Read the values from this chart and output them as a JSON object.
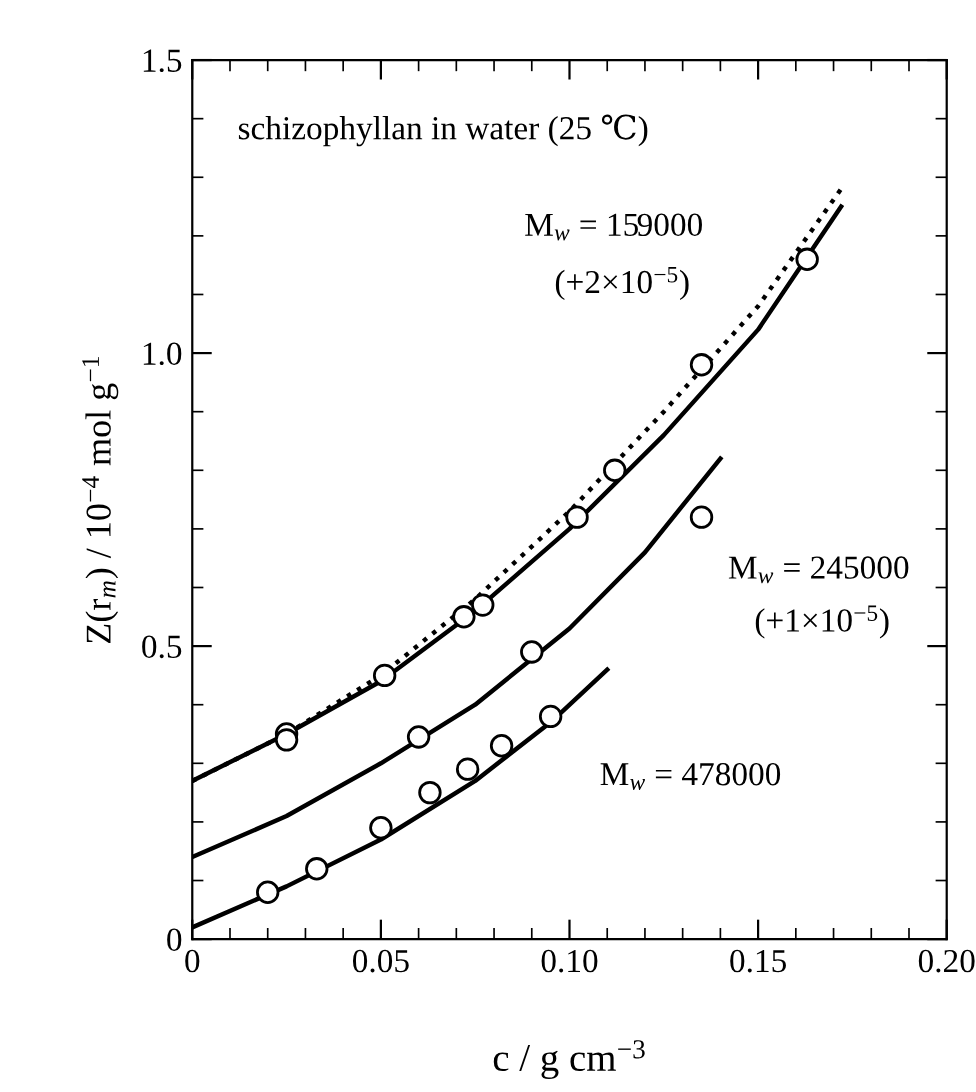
{
  "chart_data": {
    "type": "scatter",
    "xlabel": "c / g cm$^{−3}$",
    "ylabel": "Z(r$_{m}$) / 10$^{−4}$ mol g$^{−1}$",
    "xlim": [
      0,
      0.2
    ],
    "ylim": [
      0,
      1.5
    ],
    "xticks": [
      0,
      0.05,
      {
        "value": 0.1,
        "label": "0.10"
      },
      0.15,
      {
        "value": 0.2,
        "label": "0.20"
      }
    ],
    "yticks": [
      0,
      0.5,
      {
        "value": 1.0,
        "label": "1.0"
      },
      1.5
    ],
    "grid": false,
    "legend": false,
    "series": [
      {
        "type": "line",
        "marker": "none",
        "color": "#000000",
        "line_style": "dotted",
        "x": [
          0,
          0.025,
          0.05,
          0.075,
          0.1,
          0.125,
          0.15,
          0.172
        ],
        "values": [
          0.27,
          0.35,
          0.45,
          0.58,
          0.73,
          0.9,
          1.08,
          1.28
        ]
      },
      {
        "type": "line",
        "marker": "none",
        "color": "#000000",
        "line_style": "solid",
        "x": [
          0,
          0.025,
          0.05,
          0.075,
          0.1,
          0.125,
          0.15,
          0.172
        ],
        "values": [
          0.27,
          0.35,
          0.44,
          0.56,
          0.7,
          0.86,
          1.04,
          1.25
        ]
      },
      {
        "type": "line",
        "marker": "none",
        "color": "#000000",
        "line_style": "solid",
        "x": [
          0,
          0.025,
          0.05,
          0.075,
          0.1,
          0.12,
          0.14
        ],
        "values": [
          0.14,
          0.21,
          0.3,
          0.4,
          0.53,
          0.66,
          0.82
        ]
      },
      {
        "type": "line",
        "marker": "none",
        "color": "#000000",
        "line_style": "solid",
        "x": [
          0,
          0.025,
          0.05,
          0.075,
          0.095,
          0.11
        ],
        "values": [
          0.02,
          0.09,
          0.17,
          0.27,
          0.37,
          0.46
        ]
      },
      {
        "marker": "circle",
        "color": "#000000",
        "x": [
          0.025,
          0.025,
          0.051,
          0.072,
          0.077,
          0.102,
          0.112,
          0.135,
          0.163
        ],
        "values": [
          0.35,
          0.34,
          0.45,
          0.55,
          0.57,
          0.72,
          0.8,
          0.98,
          1.16
        ]
      },
      {
        "marker": "circle",
        "color": "#000000",
        "x": [
          0.06,
          0.09,
          0.135
        ],
        "values": [
          0.345,
          0.49,
          0.72
        ]
      },
      {
        "marker": "circle",
        "color": "#000000",
        "x": [
          0.02,
          0.033,
          0.05,
          0.063,
          0.073,
          0.082,
          0.095
        ],
        "values": [
          0.08,
          0.12,
          0.19,
          0.25,
          0.29,
          0.33,
          0.38
        ]
      }
    ],
    "annotations": [
      "schizophyllan in water (25 ℃)",
      "M$_{w}$ = 159000",
      "(+2×10$^{−5}$)",
      "M$_{w}$ = 245000",
      "(+1×10$^{−5}$)",
      "M$_{w}$ = 478000"
    ]
  }
}
